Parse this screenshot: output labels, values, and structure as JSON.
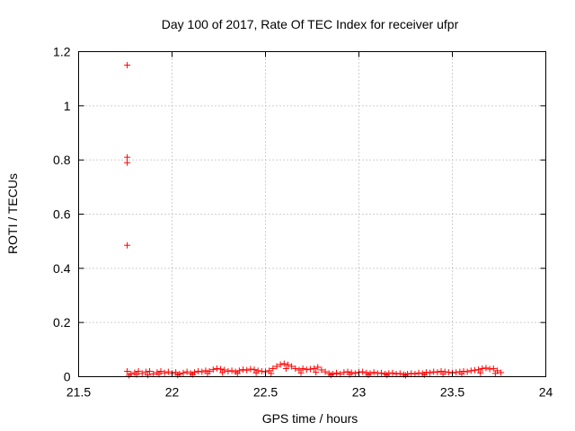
{
  "chart_data": {
    "type": "scatter",
    "title": "Day 100 of 2017, Rate Of TEC Index for receiver ufpr",
    "xlabel": "GPS time / hours",
    "ylabel": "ROTI / TECUs",
    "xlim": [
      21.5,
      24
    ],
    "ylim": [
      0,
      1.2
    ],
    "x_ticks": [
      "21.5",
      "22",
      "22.5",
      "23",
      "23.5",
      "24"
    ],
    "y_ticks": [
      "0",
      "0.2",
      "0.4",
      "0.6",
      "0.8",
      "1",
      "1.2"
    ],
    "grid": true,
    "legend": "none",
    "marker": "plus",
    "series": [
      {
        "color": "#ff0000",
        "points": [
          [
            21.76,
            1.15
          ],
          [
            21.76,
            0.81
          ],
          [
            21.76,
            0.79
          ],
          [
            21.76,
            0.485
          ],
          [
            21.76,
            0.02
          ],
          [
            21.78,
            0.01
          ],
          [
            21.8,
            0.015
          ],
          [
            21.82,
            0.02
          ],
          [
            21.84,
            0.012
          ],
          [
            21.86,
            0.018
          ],
          [
            21.88,
            0.02
          ],
          [
            21.9,
            0.01
          ],
          [
            21.92,
            0.016
          ],
          [
            21.94,
            0.02
          ],
          [
            21.96,
            0.014
          ],
          [
            21.98,
            0.018
          ],
          [
            22.0,
            0.012
          ],
          [
            22.02,
            0.016
          ],
          [
            22.04,
            0.01
          ],
          [
            22.06,
            0.014
          ],
          [
            22.08,
            0.018
          ],
          [
            22.1,
            0.012
          ],
          [
            22.12,
            0.016
          ],
          [
            22.14,
            0.02
          ],
          [
            22.16,
            0.018
          ],
          [
            22.18,
            0.022
          ],
          [
            22.2,
            0.02
          ],
          [
            22.22,
            0.026
          ],
          [
            22.24,
            0.03
          ],
          [
            22.26,
            0.028
          ],
          [
            22.28,
            0.025
          ],
          [
            22.3,
            0.02
          ],
          [
            22.32,
            0.022
          ],
          [
            22.34,
            0.018
          ],
          [
            22.36,
            0.022
          ],
          [
            22.38,
            0.026
          ],
          [
            22.4,
            0.024
          ],
          [
            22.42,
            0.028
          ],
          [
            22.44,
            0.026
          ],
          [
            22.46,
            0.022
          ],
          [
            22.48,
            0.02
          ],
          [
            22.5,
            0.018
          ],
          [
            22.52,
            0.022
          ],
          [
            22.54,
            0.03
          ],
          [
            22.56,
            0.038
          ],
          [
            22.58,
            0.045
          ],
          [
            22.6,
            0.048
          ],
          [
            22.62,
            0.044
          ],
          [
            22.64,
            0.038
          ],
          [
            22.66,
            0.03
          ],
          [
            22.68,
            0.025
          ],
          [
            22.7,
            0.03
          ],
          [
            22.72,
            0.026
          ],
          [
            22.74,
            0.028
          ],
          [
            22.76,
            0.03
          ],
          [
            22.78,
            0.035
          ],
          [
            22.8,
            0.025
          ],
          [
            22.82,
            0.018
          ],
          [
            22.84,
            0.012
          ],
          [
            22.86,
            0.01
          ],
          [
            22.88,
            0.014
          ],
          [
            22.9,
            0.01
          ],
          [
            22.92,
            0.016
          ],
          [
            22.94,
            0.018
          ],
          [
            22.96,
            0.015
          ],
          [
            22.98,
            0.012
          ],
          [
            23.0,
            0.016
          ],
          [
            23.02,
            0.018
          ],
          [
            23.04,
            0.014
          ],
          [
            23.06,
            0.012
          ],
          [
            23.08,
            0.016
          ],
          [
            23.1,
            0.012
          ],
          [
            23.12,
            0.014
          ],
          [
            23.14,
            0.01
          ],
          [
            23.16,
            0.012
          ],
          [
            23.18,
            0.014
          ],
          [
            23.2,
            0.01
          ],
          [
            23.22,
            0.012
          ],
          [
            23.24,
            0.008
          ],
          [
            23.26,
            0.01
          ],
          [
            23.28,
            0.012
          ],
          [
            23.3,
            0.01
          ],
          [
            23.32,
            0.014
          ],
          [
            23.34,
            0.012
          ],
          [
            23.36,
            0.016
          ],
          [
            23.38,
            0.014
          ],
          [
            23.4,
            0.018
          ],
          [
            23.42,
            0.016
          ],
          [
            23.44,
            0.02
          ],
          [
            23.46,
            0.018
          ],
          [
            23.48,
            0.016
          ],
          [
            23.5,
            0.014
          ],
          [
            23.52,
            0.016
          ],
          [
            23.54,
            0.018
          ],
          [
            23.56,
            0.02
          ],
          [
            23.58,
            0.018
          ],
          [
            23.6,
            0.022
          ],
          [
            23.62,
            0.024
          ],
          [
            23.64,
            0.026
          ],
          [
            23.66,
            0.03
          ],
          [
            23.68,
            0.032
          ],
          [
            23.7,
            0.028
          ],
          [
            23.72,
            0.03
          ],
          [
            23.74,
            0.022
          ],
          [
            23.76,
            0.015
          ],
          [
            21.77,
            0.005
          ],
          [
            21.81,
            0.008
          ],
          [
            21.87,
            0.006
          ],
          [
            21.93,
            0.009
          ],
          [
            22.03,
            0.006
          ],
          [
            22.11,
            0.008
          ],
          [
            22.19,
            0.012
          ],
          [
            22.27,
            0.015
          ],
          [
            22.35,
            0.012
          ],
          [
            22.45,
            0.014
          ],
          [
            22.53,
            0.012
          ],
          [
            22.61,
            0.03
          ],
          [
            22.69,
            0.014
          ],
          [
            22.77,
            0.016
          ],
          [
            22.85,
            0.006
          ],
          [
            22.95,
            0.008
          ],
          [
            23.05,
            0.007
          ],
          [
            23.15,
            0.006
          ],
          [
            23.25,
            0.005
          ],
          [
            23.35,
            0.007
          ],
          [
            23.45,
            0.009
          ],
          [
            23.55,
            0.01
          ],
          [
            23.65,
            0.014
          ],
          [
            23.73,
            0.012
          ]
        ]
      }
    ]
  }
}
